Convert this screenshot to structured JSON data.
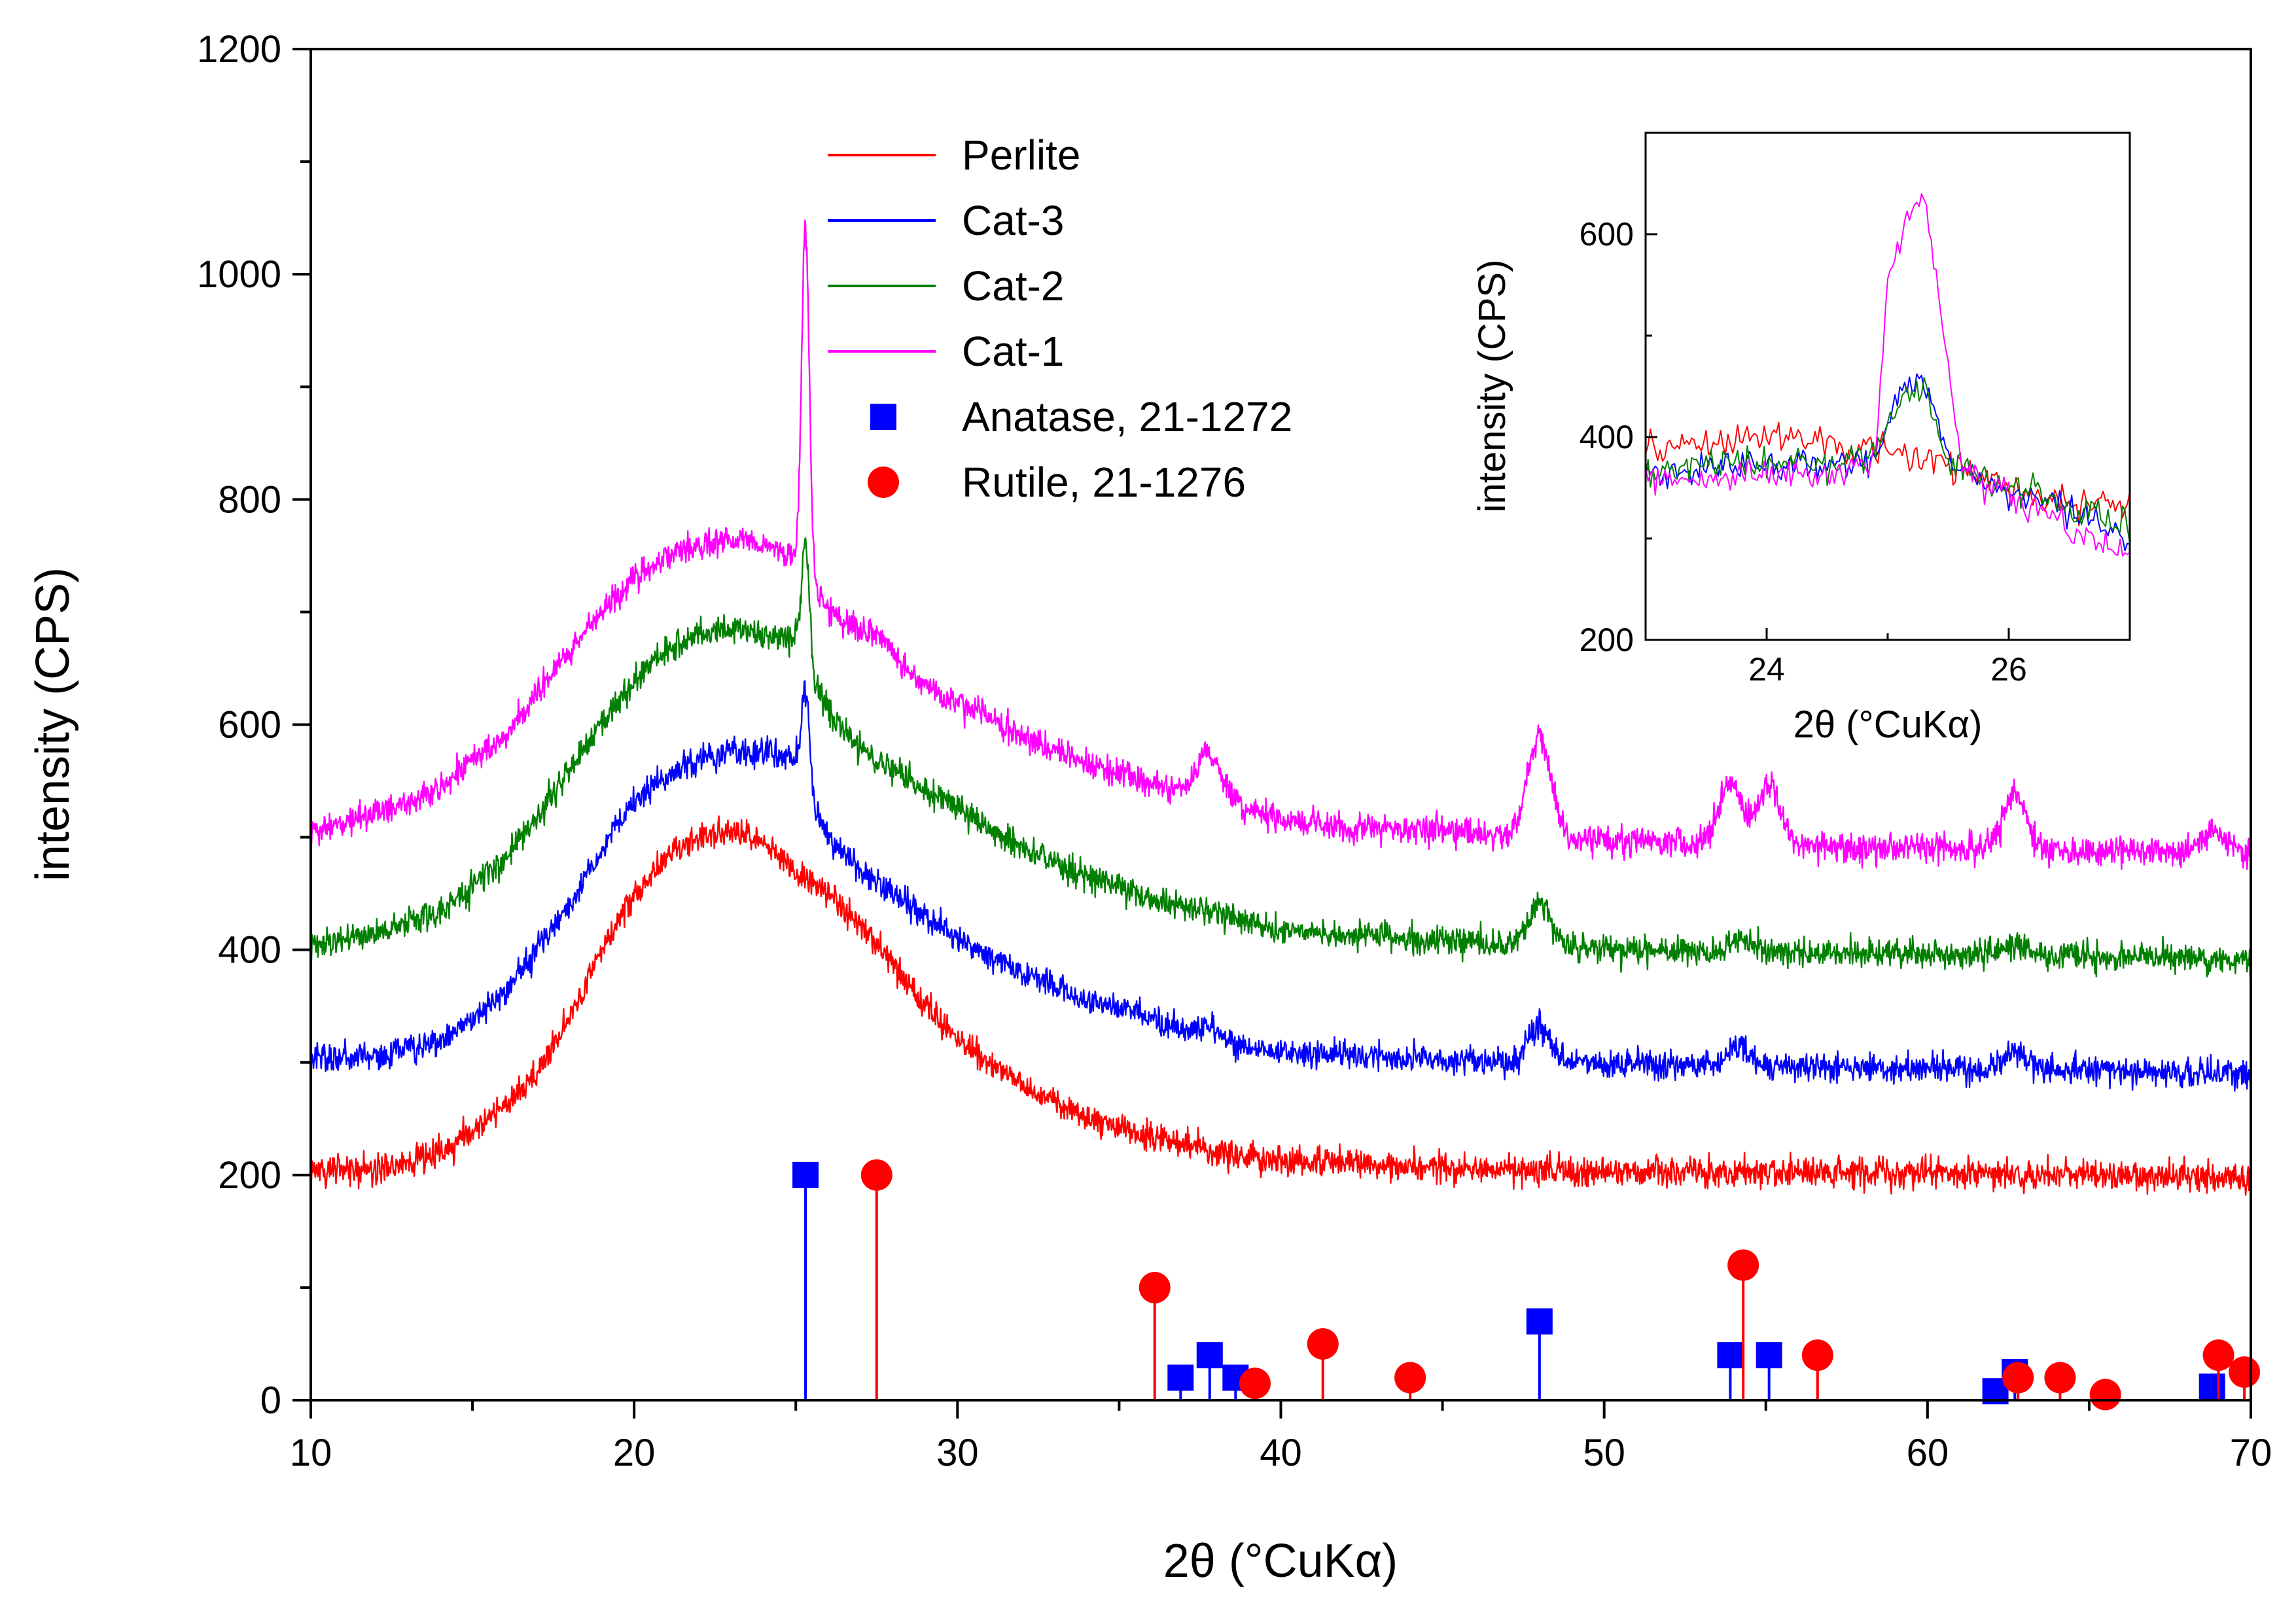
{
  "chart_data": [
    {
      "type": "line",
      "xlabel": "2θ (°CuKα)",
      "ylabel": "intensity (CPS)",
      "xlim": [
        10,
        70
      ],
      "ylim": [
        0,
        1200
      ],
      "xticks": [
        10,
        20,
        30,
        40,
        50,
        60,
        70
      ],
      "yticks": [
        0,
        200,
        400,
        600,
        800,
        1000,
        1200
      ],
      "grid": false,
      "legend_position": "top-center",
      "series": [
        {
          "name": "Perlite",
          "color": "#ff0000",
          "offset": 200,
          "points": [
            [
              10,
              205
            ],
            [
              12,
              205
            ],
            [
              14,
              220
            ],
            [
              16,
              260
            ],
            [
              17,
              290
            ],
            [
              18,
              340
            ],
            [
              19,
              400
            ],
            [
              20,
              450
            ],
            [
              21,
              480
            ],
            [
              22,
              500
            ],
            [
              23,
              505
            ],
            [
              24,
              495
            ],
            [
              25,
              470
            ],
            [
              26,
              450
            ],
            [
              27,
              420
            ],
            [
              28,
              390
            ],
            [
              29,
              350
            ],
            [
              30,
              320
            ],
            [
              32,
              280
            ],
            [
              34,
              250
            ],
            [
              36,
              235
            ],
            [
              38,
              220
            ],
            [
              40,
              213
            ],
            [
              45,
              207
            ],
            [
              50,
              203
            ],
            [
              55,
              202
            ],
            [
              60,
              202
            ],
            [
              65,
              200
            ],
            [
              70,
              198
            ]
          ],
          "peaks": []
        },
        {
          "name": "Cat-3",
          "color": "#0000ff",
          "offset": 300,
          "points": [
            [
              10,
              305
            ],
            [
              12,
              305
            ],
            [
              14,
              320
            ],
            [
              16,
              360
            ],
            [
              17,
              400
            ],
            [
              18,
              440
            ],
            [
              19,
              490
            ],
            [
              20,
              530
            ],
            [
              21,
              555
            ],
            [
              22,
              570
            ],
            [
              23,
              575
            ],
            [
              24,
              575
            ],
            [
              25,
              570
            ],
            [
              26,
              500
            ],
            [
              27,
              470
            ],
            [
              28,
              450
            ],
            [
              29,
              430
            ],
            [
              30,
              410
            ],
            [
              32,
              380
            ],
            [
              34,
              355
            ],
            [
              36,
              340
            ],
            [
              38,
              320
            ],
            [
              40,
              310
            ],
            [
              45,
              303
            ],
            [
              50,
              300
            ],
            [
              55,
              297
            ],
            [
              60,
              295
            ],
            [
              65,
              293
            ],
            [
              70,
              290
            ]
          ],
          "peaks": [
            [
              25.3,
              630
            ],
            [
              37.8,
              330
            ],
            [
              48.0,
              330
            ],
            [
              54.2,
              315
            ],
            [
              62.7,
              310
            ]
          ]
        },
        {
          "name": "Cat-2",
          "color": "#007f00",
          "offset": 400,
          "points": [
            [
              10,
              405
            ],
            [
              12,
              415
            ],
            [
              14,
              435
            ],
            [
              16,
              480
            ],
            [
              17,
              520
            ],
            [
              18,
              560
            ],
            [
              19,
              600
            ],
            [
              20,
              640
            ],
            [
              21,
              665
            ],
            [
              22,
              680
            ],
            [
              23,
              685
            ],
            [
              24,
              680
            ],
            [
              25,
              675
            ],
            [
              26,
              610
            ],
            [
              27,
              580
            ],
            [
              28,
              560
            ],
            [
              29,
              540
            ],
            [
              30,
              525
            ],
            [
              32,
              490
            ],
            [
              34,
              465
            ],
            [
              36,
              445
            ],
            [
              38,
              432
            ],
            [
              40,
              418
            ],
            [
              45,
              408
            ],
            [
              50,
              400
            ],
            [
              55,
              398
            ],
            [
              60,
              396
            ],
            [
              65,
              394
            ],
            [
              70,
              390
            ]
          ],
          "peaks": [
            [
              25.3,
              760
            ],
            [
              48.0,
              440
            ],
            [
              54.2,
              410
            ],
            [
              62.7,
              405
            ]
          ]
        },
        {
          "name": "Cat-1",
          "color": "#ff00ff",
          "offset": 500,
          "points": [
            [
              10,
              505
            ],
            [
              12,
              520
            ],
            [
              14,
              545
            ],
            [
              16,
              590
            ],
            [
              17,
              630
            ],
            [
              18,
              665
            ],
            [
              19,
              700
            ],
            [
              20,
              730
            ],
            [
              21,
              750
            ],
            [
              22,
              760
            ],
            [
              23,
              765
            ],
            [
              24,
              760
            ],
            [
              25,
              750
            ],
            [
              26,
              700
            ],
            [
              27,
              680
            ],
            [
              28,
              660
            ],
            [
              29,
              635
            ],
            [
              30,
              620
            ],
            [
              32,
              590
            ],
            [
              34,
              565
            ],
            [
              36,
              548
            ],
            [
              38,
              535
            ],
            [
              40,
              515
            ],
            [
              45,
              505
            ],
            [
              50,
              497
            ],
            [
              55,
              492
            ],
            [
              60,
              490
            ],
            [
              65,
              488
            ],
            [
              70,
              488
            ]
          ],
          "peaks": [
            [
              25.3,
              1040
            ],
            [
              27.5,
              680
            ],
            [
              37.8,
              575
            ],
            [
              48.0,
              590
            ],
            [
              53.9,
              550
            ],
            [
              55.1,
              545
            ],
            [
              62.7,
              540
            ],
            [
              68.8,
              505
            ]
          ]
        }
      ],
      "reference_lines": [
        {
          "name": "Anatase, 21-1272",
          "color": "#0000ff",
          "marker": "square",
          "points": [
            [
              25.3,
              200
            ],
            [
              36.9,
              20
            ],
            [
              37.8,
              40
            ],
            [
              38.6,
              20
            ],
            [
              48.0,
              70
            ],
            [
              53.9,
              40
            ],
            [
              55.1,
              40
            ],
            [
              62.1,
              8
            ],
            [
              62.7,
              25
            ],
            [
              68.8,
              12
            ]
          ]
        },
        {
          "name": "Rutile, 21-1276",
          "color": "#ff0000",
          "marker": "circle",
          "points": [
            [
              27.5,
              200
            ],
            [
              36.1,
              100
            ],
            [
              39.2,
              15
            ],
            [
              41.3,
              50
            ],
            [
              44.0,
              20
            ],
            [
              54.3,
              120
            ],
            [
              56.6,
              40
            ],
            [
              62.8,
              20
            ],
            [
              64.1,
              20
            ],
            [
              65.5,
              5
            ],
            [
              69.0,
              40
            ],
            [
              69.8,
              25
            ]
          ]
        }
      ]
    },
    {
      "type": "line",
      "role": "inset",
      "xlabel": "2θ (°CuKα)",
      "ylabel": "intensity (CPS)",
      "xlim": [
        23,
        27
      ],
      "ylim": [
        200,
        700
      ],
      "xticks": [
        24,
        26
      ],
      "yticks": [
        200,
        400,
        600
      ],
      "grid": false,
      "series": [
        {
          "name": "Perlite",
          "color": "#ff0000",
          "points": [
            [
              23,
              390
            ],
            [
              23.5,
              395
            ],
            [
              24,
              400
            ],
            [
              24.5,
              395
            ],
            [
              25,
              385
            ],
            [
              25.4,
              378
            ],
            [
              25.8,
              360
            ],
            [
              26.2,
              345
            ],
            [
              26.6,
              335
            ],
            [
              27,
              330
            ]
          ]
        },
        {
          "name": "Cat-3",
          "color": "#0000ff",
          "points": [
            [
              23,
              365
            ],
            [
              23.5,
              370
            ],
            [
              24,
              375
            ],
            [
              24.5,
              370
            ],
            [
              24.9,
              380
            ],
            [
              25.1,
              440
            ],
            [
              25.3,
              455
            ],
            [
              25.5,
              380
            ],
            [
              25.8,
              350
            ],
            [
              26.2,
              340
            ],
            [
              26.6,
              320
            ],
            [
              27,
              300
            ]
          ]
        },
        {
          "name": "Cat-2",
          "color": "#007f00",
          "points": [
            [
              23,
              370
            ],
            [
              23.5,
              375
            ],
            [
              24,
              375
            ],
            [
              24.5,
              375
            ],
            [
              24.9,
              385
            ],
            [
              25.1,
              430
            ],
            [
              25.3,
              445
            ],
            [
              25.5,
              380
            ],
            [
              25.8,
              355
            ],
            [
              26.2,
              345
            ],
            [
              26.6,
              330
            ],
            [
              27,
              310
            ]
          ]
        },
        {
          "name": "Cat-1",
          "color": "#ff00ff",
          "points": [
            [
              23,
              360
            ],
            [
              23.5,
              360
            ],
            [
              24,
              365
            ],
            [
              24.5,
              360
            ],
            [
              24.9,
              385
            ],
            [
              25.0,
              560
            ],
            [
              25.2,
              620
            ],
            [
              25.3,
              640
            ],
            [
              25.4,
              560
            ],
            [
              25.6,
              380
            ],
            [
              25.9,
              345
            ],
            [
              26.3,
              325
            ],
            [
              26.7,
              300
            ],
            [
              27,
              280
            ]
          ]
        }
      ]
    }
  ]
}
